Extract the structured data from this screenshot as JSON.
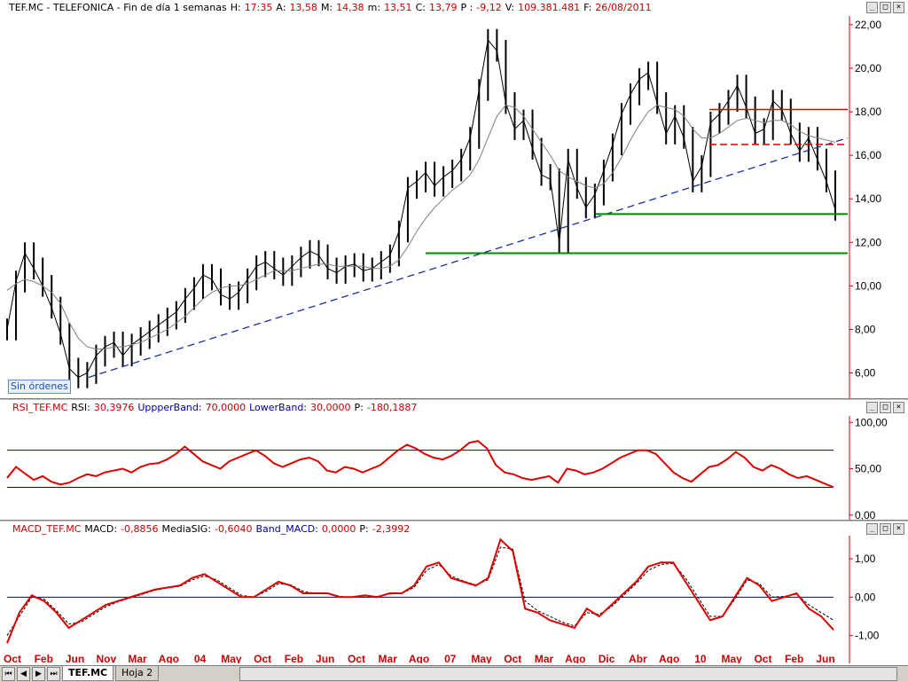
{
  "header": {
    "symbol": "TEF.MC - TELEFONICA - Fin de día 1 semanas",
    "high_label": "H:",
    "high_value": "17:35",
    "open_label": "A:",
    "open_value": "13,58",
    "max_label": "M:",
    "max_value": "14,38",
    "min_label": "m:",
    "min_value": "13,51",
    "close_label": "C:",
    "close_value": "13,79",
    "change_label": "P :",
    "change_value": "-9,12",
    "volume_label": "V:",
    "volume_value": "109.381.481",
    "date_label": "F:",
    "date_value": "26/08/2011"
  },
  "orders_badge": "Sin órdenes",
  "rsi_header": {
    "name": "RSI_TEF.MC",
    "rsi_label": "RSI:",
    "rsi_value": "30,3976",
    "upper_label": "UppperBand:",
    "upper_value": "70,0000",
    "lower_label": "LowerBand:",
    "lower_value": "30,0000",
    "p_label": "P:",
    "p_value": "-180,1887"
  },
  "macd_header": {
    "name": "MACD_TEF.MC",
    "macd_label": "MACD:",
    "macd_value": "-0,8856",
    "sig_label": "MediaSIG:",
    "sig_value": "-0,6040",
    "band_label": "Band_MACD:",
    "band_value": "0,0000",
    "p_label": "P:",
    "p_value": "-2,3992"
  },
  "window_buttons": [
    "_",
    "□",
    "×"
  ],
  "tabs": [
    "TEF.MC",
    "Hoja 2"
  ],
  "nav_buttons": [
    "⏮",
    "◀",
    "▶",
    "⏭"
  ],
  "colors": {
    "price": "#000000",
    "ma": "#808080",
    "trend": "#1a2fa8",
    "support": "#008800",
    "resistance": "#dd0000",
    "rsi": "#dd0000",
    "macd": "#dd0000",
    "band": "#000080",
    "axis_red": "#cc0000"
  },
  "chart_data": [
    {
      "type": "line",
      "name": "price",
      "ylim": [
        4.8,
        22.4
      ],
      "yticks": [
        "22,00",
        "20,00",
        "18,00",
        "16,00",
        "14,00",
        "12,00",
        "10,00",
        "8,00",
        "6,00"
      ],
      "xticks": [
        "Oct",
        "Feb",
        "Jun",
        "Nov",
        "Mar",
        "Ago",
        "04",
        "May",
        "Oct",
        "Feb",
        "Jun",
        "Oct",
        "Mar",
        "Ago",
        "07",
        "May",
        "Oct",
        "Mar",
        "Ago",
        "Dic",
        "Abr",
        "Ago",
        "10",
        "May",
        "Oct",
        "Feb",
        "Jun"
      ],
      "series": [
        {
          "name": "close",
          "values": [
            8.0,
            10.2,
            11.5,
            10.8,
            10.0,
            9.0,
            7.8,
            6.2,
            5.8,
            6.0,
            6.8,
            7.2,
            7.4,
            6.8,
            7.3,
            7.6,
            7.9,
            8.2,
            8.5,
            8.8,
            9.4,
            9.9,
            10.5,
            10.3,
            9.6,
            9.4,
            9.7,
            10.3,
            10.9,
            11.1,
            10.8,
            10.5,
            10.9,
            11.3,
            11.6,
            11.4,
            10.8,
            10.6,
            10.9,
            11.0,
            10.7,
            10.8,
            11.1,
            11.4,
            12.5,
            14.5,
            14.8,
            15.2,
            14.6,
            15.0,
            15.3,
            15.8,
            16.8,
            19.0,
            21.3,
            20.8,
            18.4,
            17.2,
            17.6,
            16.3,
            15.1,
            14.9,
            12.0,
            15.8,
            14.5,
            13.6,
            14.2,
            15.3,
            16.5,
            17.9,
            18.8,
            19.5,
            19.8,
            18.4,
            17.0,
            17.8,
            16.8,
            14.8,
            15.5,
            17.5,
            17.9,
            18.5,
            19.2,
            18.2,
            17.0,
            17.2,
            18.5,
            18.1,
            17.0,
            16.2,
            16.8,
            15.8,
            14.8,
            13.5
          ]
        },
        {
          "name": "ma",
          "values": [
            9.8,
            10.1,
            10.3,
            10.2,
            10.0,
            9.7,
            9.2,
            8.3,
            7.6,
            7.2,
            7.1,
            7.1,
            7.2,
            7.2,
            7.3,
            7.4,
            7.6,
            7.8,
            8.0,
            8.3,
            8.6,
            9.0,
            9.4,
            9.7,
            9.9,
            10.0,
            10.0,
            10.1,
            10.3,
            10.5,
            10.7,
            10.7,
            10.7,
            10.8,
            10.9,
            11.0,
            11.0,
            10.9,
            10.9,
            10.9,
            10.9,
            10.8,
            10.8,
            10.9,
            11.2,
            11.8,
            12.5,
            13.1,
            13.6,
            14.0,
            14.4,
            14.7,
            15.1,
            15.8,
            16.8,
            17.8,
            18.3,
            18.2,
            17.8,
            17.2,
            16.6,
            16.0,
            15.3,
            15.0,
            14.8,
            14.6,
            14.5,
            14.7,
            15.2,
            15.9,
            16.7,
            17.4,
            18.0,
            18.3,
            18.2,
            18.1,
            17.8,
            17.2,
            16.8,
            16.8,
            17.0,
            17.3,
            17.6,
            17.7,
            17.6,
            17.5,
            17.6,
            17.6,
            17.4,
            17.1,
            16.9,
            16.8,
            16.7,
            16.6
          ]
        },
        {
          "name": "trend",
          "values": [
            5.8,
            16.8
          ]
        }
      ],
      "support": [
        11.5,
        13.3
      ],
      "resistance": [
        18.1,
        16.5
      ]
    },
    {
      "type": "line",
      "name": "RSI",
      "ylim": [
        -5,
        107
      ],
      "yticks": [
        "100,00",
        "50,00",
        "0,00"
      ],
      "bands": [
        70,
        30
      ],
      "values": [
        40,
        52,
        45,
        38,
        42,
        36,
        33,
        35,
        40,
        44,
        42,
        46,
        48,
        50,
        46,
        52,
        55,
        56,
        60,
        66,
        74,
        66,
        58,
        54,
        50,
        58,
        62,
        66,
        70,
        64,
        56,
        52,
        56,
        60,
        62,
        58,
        48,
        46,
        52,
        50,
        46,
        50,
        54,
        62,
        70,
        76,
        72,
        66,
        62,
        60,
        64,
        70,
        78,
        80,
        72,
        54,
        46,
        44,
        40,
        38,
        40,
        42,
        35,
        50,
        48,
        44,
        46,
        50,
        56,
        62,
        66,
        70,
        70,
        66,
        56,
        46,
        40,
        36,
        44,
        52,
        54,
        60,
        68,
        62,
        52,
        48,
        54,
        50,
        44,
        40,
        42,
        38,
        34,
        30
      ]
    },
    {
      "type": "line",
      "name": "MACD",
      "ylim": [
        -1.4,
        1.6
      ],
      "yticks": [
        "1,00",
        "0,00",
        "-1,00"
      ],
      "series": [
        {
          "name": "MACD",
          "values": [
            -1.2,
            -0.4,
            0.05,
            -0.1,
            -0.4,
            -0.8,
            -0.6,
            -0.4,
            -0.2,
            -0.1,
            0.0,
            0.1,
            0.2,
            0.25,
            0.3,
            0.5,
            0.6,
            0.4,
            0.2,
            0.0,
            0.0,
            0.2,
            0.4,
            0.3,
            0.1,
            0.1,
            0.1,
            0.0,
            0.0,
            0.05,
            0.0,
            0.1,
            0.1,
            0.3,
            0.8,
            0.9,
            0.5,
            0.4,
            0.3,
            0.5,
            1.5,
            1.2,
            -0.3,
            -0.4,
            -0.6,
            -0.7,
            -0.8,
            -0.3,
            -0.5,
            -0.2,
            0.1,
            0.4,
            0.8,
            0.9,
            0.9,
            0.4,
            -0.1,
            -0.6,
            -0.5,
            0.0,
            0.5,
            0.3,
            -0.1,
            0.0,
            0.1,
            -0.3,
            -0.5,
            -0.85
          ]
        }
      ],
      "signal": [
        -1.0,
        -0.5,
        0.0,
        -0.05,
        -0.35,
        -0.7,
        -0.65,
        -0.45,
        -0.25,
        -0.12,
        -0.02,
        0.08,
        0.18,
        0.24,
        0.28,
        0.45,
        0.55,
        0.45,
        0.25,
        0.05,
        0.0,
        0.15,
        0.35,
        0.32,
        0.15,
        0.1,
        0.1,
        0.02,
        0.0,
        0.03,
        0.02,
        0.08,
        0.1,
        0.25,
        0.7,
        0.85,
        0.55,
        0.42,
        0.32,
        0.45,
        1.3,
        1.25,
        -0.1,
        -0.35,
        -0.5,
        -0.65,
        -0.75,
        -0.4,
        -0.45,
        -0.25,
        0.05,
        0.35,
        0.7,
        0.85,
        0.88,
        0.5,
        0.0,
        -0.5,
        -0.5,
        -0.05,
        0.45,
        0.35,
        0.0,
        0.02,
        0.08,
        -0.2,
        -0.4,
        -0.6
      ],
      "band": 0
    }
  ]
}
